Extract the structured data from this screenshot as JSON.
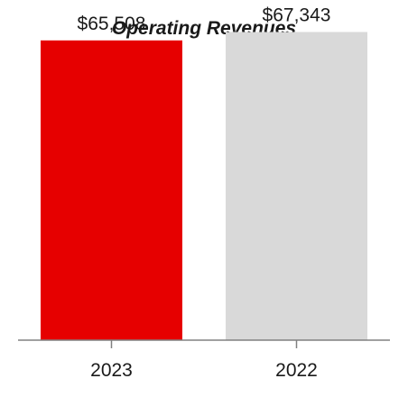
{
  "chart_data": {
    "type": "bar",
    "title": "Operating Revenues",
    "xlabel": "",
    "ylabel": "",
    "categories": [
      "2023",
      "2022"
    ],
    "values": [
      65508,
      67343
    ],
    "data_labels": [
      "$65,508",
      "$67,343"
    ],
    "colors": [
      "#e60000",
      "#d9d9d9"
    ],
    "axis_color": "#808080",
    "ylim": [
      0,
      70000
    ],
    "grid": false,
    "legend": "none"
  }
}
